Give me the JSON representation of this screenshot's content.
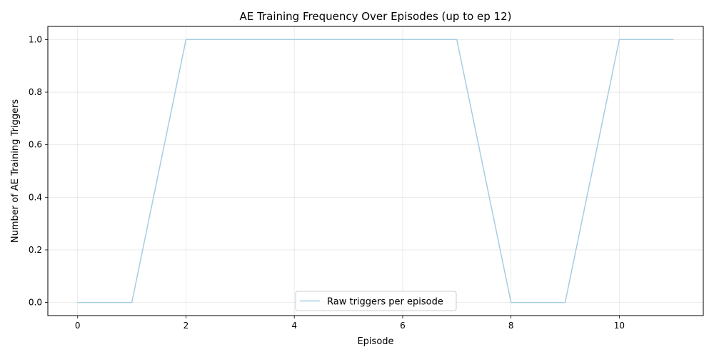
{
  "chart_data": {
    "type": "line",
    "title": "AE Training Frequency Over Episodes (up to ep 12)",
    "xlabel": "Episode",
    "ylabel": "Number of AE Training Triggers",
    "xlim": [
      -0.55,
      11.55
    ],
    "ylim": [
      -0.05,
      1.05
    ],
    "xticks": [
      0,
      2,
      4,
      6,
      8,
      10
    ],
    "xtick_labels": [
      "0",
      "2",
      "4",
      "6",
      "8",
      "10"
    ],
    "yticks": [
      0.0,
      0.2,
      0.4,
      0.6,
      0.8,
      1.0
    ],
    "ytick_labels": [
      "0.0",
      "0.2",
      "0.4",
      "0.6",
      "0.8",
      "1.0"
    ],
    "grid": true,
    "legend_position": "lower-center",
    "series": [
      {
        "name": "Raw triggers per episode",
        "color": "#a6cde3",
        "x": [
          0,
          1,
          2,
          3,
          4,
          5,
          6,
          7,
          8,
          9,
          10,
          11
        ],
        "y": [
          0,
          0,
          1,
          1,
          1,
          1,
          1,
          1,
          0,
          0,
          1,
          1
        ]
      }
    ]
  }
}
